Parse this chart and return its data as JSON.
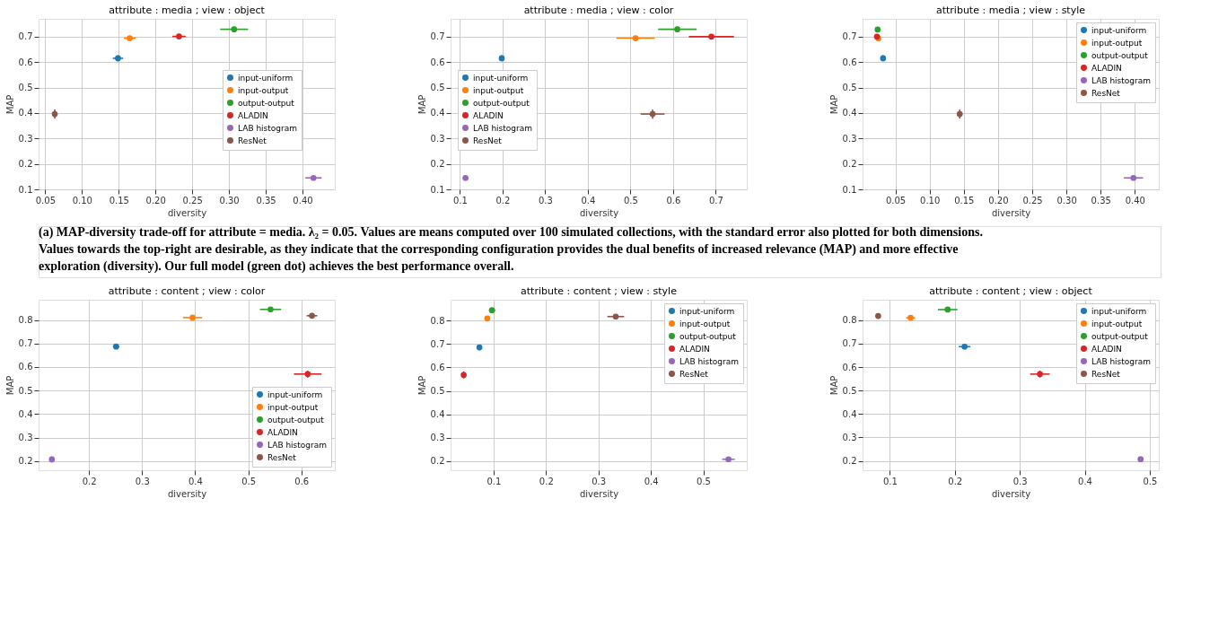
{
  "chart_data": [
    {
      "type": "scatter",
      "title": "attribute : media ; view : object",
      "xlabel": "diversity",
      "ylabel": "MAP",
      "xlim": [
        0.041,
        0.444
      ],
      "ylim": [
        0.1,
        0.77
      ],
      "xticks": [
        {
          "value": 0.05,
          "label": "0.05"
        },
        {
          "value": 0.1,
          "label": "0.10"
        },
        {
          "value": 0.15,
          "label": "0.15"
        },
        {
          "value": 0.2,
          "label": "0.20"
        },
        {
          "value": 0.25,
          "label": "0.25"
        },
        {
          "value": 0.3,
          "label": "0.30"
        },
        {
          "value": 0.35,
          "label": "0.35"
        },
        {
          "value": 0.4,
          "label": "0.40"
        }
      ],
      "yticks": [
        0.1,
        0.2,
        0.3,
        0.4,
        0.5,
        0.6,
        0.7
      ],
      "grid": true,
      "legend": "center right",
      "marker": "circle",
      "series": [
        {
          "name": "input-uniform",
          "color": "#1f77b4",
          "x": [
            0.149
          ],
          "values": [
            0.615
          ],
          "errors": [
            0.012
          ],
          "xerrors": [
            0.007
          ]
        },
        {
          "name": "input-output",
          "color": "#ff7f0e",
          "x": [
            0.165
          ],
          "values": [
            0.694
          ],
          "errors": [
            0.006
          ],
          "xerrors": [
            0.008
          ]
        },
        {
          "name": "output-output",
          "color": "#2ca02c",
          "x": [
            0.307
          ],
          "values": [
            0.729
          ],
          "errors": [
            0.01
          ],
          "xerrors": [
            0.019
          ]
        },
        {
          "name": "ALADIN",
          "color": "#d62728",
          "x": [
            0.232
          ],
          "values": [
            0.701
          ],
          "errors": [
            0.01
          ],
          "xerrors": [
            0.009
          ]
        },
        {
          "name": "LAB histogram",
          "color": "#9467bd",
          "x": [
            0.415
          ],
          "values": [
            0.145
          ],
          "errors": [
            0.006
          ],
          "xerrors": [
            0.011
          ]
        },
        {
          "name": "ResNet",
          "color": "#8c564b",
          "x": [
            0.063
          ],
          "values": [
            0.396
          ],
          "errors": [
            0.018
          ],
          "xerrors": [
            0.003
          ]
        }
      ],
      "annotations": [
        "(a) MAP-diversity trade-off for attribute = media. λ₂ = 0.05. Values are means computed over 100 simulated collections, with the standard error also plotted for both dimensions. Values towards the top-right are desirable, as they indicate that the corresponding configuration provides the dual benefits of increased relevance (MAP) and more effective exploration (diversity). Our full model (green dot) achieves the best performance overall."
      ]
    },
    {
      "type": "scatter",
      "title": "attribute : media ; view : color",
      "xlabel": "diversity",
      "ylabel": "MAP",
      "xlim": [
        0.078,
        0.773
      ],
      "ylim": [
        0.1,
        0.77
      ],
      "xticks": [
        0.1,
        0.2,
        0.3,
        0.4,
        0.5,
        0.6,
        0.7
      ],
      "yticks": [
        0.1,
        0.2,
        0.3,
        0.4,
        0.5,
        0.6,
        0.7
      ],
      "grid": true,
      "legend": "center left",
      "marker": "circle",
      "series": [
        {
          "name": "input-uniform",
          "color": "#1f77b4",
          "x": [
            0.198
          ],
          "values": [
            0.615
          ],
          "errors": [
            0.012
          ],
          "xerrors": [
            0.006
          ]
        },
        {
          "name": "input-output",
          "color": "#ff7f0e",
          "x": [
            0.512
          ],
          "values": [
            0.694
          ],
          "errors": [
            0.006
          ],
          "xerrors": [
            0.045
          ]
        },
        {
          "name": "output-output",
          "color": "#2ca02c",
          "x": [
            0.61
          ],
          "values": [
            0.729
          ],
          "errors": [
            0.01
          ],
          "xerrors": [
            0.045
          ]
        },
        {
          "name": "ALADIN",
          "color": "#d62728",
          "x": [
            0.69
          ],
          "values": [
            0.7
          ],
          "errors": [
            0.01
          ],
          "xerrors": [
            0.053
          ]
        },
        {
          "name": "LAB histogram",
          "color": "#9467bd",
          "x": [
            0.113
          ],
          "values": [
            0.145
          ],
          "errors": [
            0.006
          ],
          "xerrors": [
            0.004
          ]
        },
        {
          "name": "ResNet",
          "color": "#8c564b",
          "x": [
            0.552
          ],
          "values": [
            0.396
          ],
          "errors": [
            0.018
          ],
          "xerrors": [
            0.028
          ]
        }
      ]
    },
    {
      "type": "scatter",
      "title": "attribute : media ; view : style",
      "xlabel": "diversity",
      "ylabel": "MAP",
      "xlim": [
        0.002,
        0.435
      ],
      "ylim": [
        0.1,
        0.77
      ],
      "xticks": [
        {
          "value": 0.05,
          "label": "0.05"
        },
        {
          "value": 0.1,
          "label": "0.10"
        },
        {
          "value": 0.15,
          "label": "0.15"
        },
        {
          "value": 0.2,
          "label": "0.20"
        },
        {
          "value": 0.25,
          "label": "0.25"
        },
        {
          "value": 0.3,
          "label": "0.30"
        },
        {
          "value": 0.35,
          "label": "0.35"
        },
        {
          "value": 0.4,
          "label": "0.40"
        }
      ],
      "yticks": [
        0.1,
        0.2,
        0.3,
        0.4,
        0.5,
        0.6,
        0.7
      ],
      "grid": true,
      "legend": "top right",
      "marker": "circle",
      "series": [
        {
          "name": "input-uniform",
          "color": "#1f77b4",
          "x": [
            0.032
          ],
          "values": [
            0.615
          ],
          "errors": [
            0.012
          ],
          "xerrors": [
            0.002
          ]
        },
        {
          "name": "input-output",
          "color": "#ff7f0e",
          "x": [
            0.025
          ],
          "values": [
            0.693
          ],
          "errors": [
            0.006
          ],
          "xerrors": [
            0.002
          ]
        },
        {
          "name": "output-output",
          "color": "#2ca02c",
          "x": [
            0.024
          ],
          "values": [
            0.728
          ],
          "errors": [
            0.01
          ],
          "xerrors": [
            0.002
          ]
        },
        {
          "name": "ALADIN",
          "color": "#d62728",
          "x": [
            0.023
          ],
          "values": [
            0.7
          ],
          "errors": [
            0.01
          ],
          "xerrors": [
            0.002
          ]
        },
        {
          "name": "LAB histogram",
          "color": "#9467bd",
          "x": [
            0.398
          ],
          "values": [
            0.145
          ],
          "errors": [
            0.006
          ],
          "xerrors": [
            0.014
          ]
        },
        {
          "name": "ResNet",
          "color": "#8c564b",
          "x": [
            0.144
          ],
          "values": [
            0.396
          ],
          "errors": [
            0.018
          ],
          "xerrors": [
            0.004
          ]
        }
      ]
    },
    {
      "type": "scatter",
      "title": "attribute : content ; view : color",
      "xlabel": "diversity",
      "ylabel": "MAP",
      "xlim": [
        0.105,
        0.663
      ],
      "ylim": [
        0.161,
        0.886
      ],
      "xticks": [
        0.2,
        0.3,
        0.4,
        0.5,
        0.6
      ],
      "yticks": [
        0.2,
        0.3,
        0.4,
        0.5,
        0.6,
        0.7,
        0.8
      ],
      "grid": true,
      "legend": "bottom right",
      "marker": "circle",
      "series": [
        {
          "name": "input-uniform",
          "color": "#1f77b4",
          "x": [
            0.251
          ],
          "values": [
            0.687
          ],
          "errors": [
            0.01
          ],
          "xerrors": [
            0.006
          ]
        },
        {
          "name": "input-output",
          "color": "#ff7f0e",
          "x": [
            0.395
          ],
          "values": [
            0.81
          ],
          "errors": [
            0.008
          ],
          "xerrors": [
            0.018
          ]
        },
        {
          "name": "output-output",
          "color": "#2ca02c",
          "x": [
            0.542
          ],
          "values": [
            0.845
          ],
          "errors": [
            0.008
          ],
          "xerrors": [
            0.02
          ]
        },
        {
          "name": "ALADIN",
          "color": "#d62728",
          "x": [
            0.612
          ],
          "values": [
            0.57
          ],
          "errors": [
            0.015
          ],
          "xerrors": [
            0.026
          ]
        },
        {
          "name": "LAB histogram",
          "color": "#9467bd",
          "x": [
            0.13
          ],
          "values": [
            0.207
          ],
          "errors": [
            0.012
          ],
          "xerrors": [
            0.003
          ]
        },
        {
          "name": "ResNet",
          "color": "#8c564b",
          "x": [
            0.62
          ],
          "values": [
            0.818
          ],
          "errors": [
            0.012
          ],
          "xerrors": [
            0.01
          ]
        }
      ]
    },
    {
      "type": "scatter",
      "title": "attribute : content ; view : style",
      "xlabel": "diversity",
      "ylabel": "MAP",
      "xlim": [
        0.018,
        0.583
      ],
      "ylim": [
        0.16,
        0.89
      ],
      "xticks": [
        0.1,
        0.2,
        0.3,
        0.4,
        0.5
      ],
      "yticks": [
        0.2,
        0.3,
        0.4,
        0.5,
        0.6,
        0.7,
        0.8
      ],
      "grid": true,
      "legend": "top right",
      "marker": "circle",
      "series": [
        {
          "name": "input-uniform",
          "color": "#1f77b4",
          "x": [
            0.073
          ],
          "values": [
            0.686
          ],
          "errors": [
            0.012
          ],
          "xerrors": [
            0.003
          ]
        },
        {
          "name": "input-output",
          "color": "#ff7f0e",
          "x": [
            0.088
          ],
          "values": [
            0.81
          ],
          "errors": [
            0.008
          ],
          "xerrors": [
            0.004
          ]
        },
        {
          "name": "output-output",
          "color": "#2ca02c",
          "x": [
            0.097
          ],
          "values": [
            0.845
          ],
          "errors": [
            0.008
          ],
          "xerrors": [
            0.006
          ]
        },
        {
          "name": "ALADIN",
          "color": "#d62728",
          "x": [
            0.043
          ],
          "values": [
            0.568
          ],
          "errors": [
            0.015
          ],
          "xerrors": [
            0.002
          ]
        },
        {
          "name": "LAB histogram",
          "color": "#9467bd",
          "x": [
            0.548
          ],
          "values": [
            0.207
          ],
          "errors": [
            0.008
          ],
          "xerrors": [
            0.012
          ]
        },
        {
          "name": "ResNet",
          "color": "#8c564b",
          "x": [
            0.333
          ],
          "values": [
            0.818
          ],
          "errors": [
            0.01
          ],
          "xerrors": [
            0.016
          ]
        }
      ]
    },
    {
      "type": "scatter",
      "title": "attribute : content ; view : object",
      "xlabel": "diversity",
      "ylabel": "MAP",
      "xlim": [
        0.058,
        0.514
      ],
      "ylim": [
        0.16,
        0.887
      ],
      "xticks": [
        0.1,
        0.2,
        0.3,
        0.4,
        0.5
      ],
      "yticks": [
        0.2,
        0.3,
        0.4,
        0.5,
        0.6,
        0.7,
        0.8
      ],
      "grid": true,
      "legend": "top right",
      "marker": "circle",
      "series": [
        {
          "name": "input-uniform",
          "color": "#1f77b4",
          "x": [
            0.215
          ],
          "values": [
            0.687
          ],
          "errors": [
            0.01
          ],
          "xerrors": [
            0.009
          ]
        },
        {
          "name": "input-output",
          "color": "#ff7f0e",
          "x": [
            0.132
          ],
          "values": [
            0.81
          ],
          "errors": [
            0.008
          ],
          "xerrors": [
            0.007
          ]
        },
        {
          "name": "output-output",
          "color": "#2ca02c",
          "x": [
            0.189
          ],
          "values": [
            0.845
          ],
          "errors": [
            0.008
          ],
          "xerrors": [
            0.015
          ]
        },
        {
          "name": "ALADIN",
          "color": "#d62728",
          "x": [
            0.331
          ],
          "values": [
            0.57
          ],
          "errors": [
            0.015
          ],
          "xerrors": [
            0.015
          ]
        },
        {
          "name": "LAB histogram",
          "color": "#9467bd",
          "x": [
            0.486
          ],
          "values": [
            0.207
          ],
          "errors": [
            0.01
          ],
          "xerrors": [
            0.004
          ]
        },
        {
          "name": "ResNet",
          "color": "#8c564b",
          "x": [
            0.082
          ],
          "values": [
            0.818
          ],
          "errors": [
            0.012
          ],
          "xerrors": [
            0.003
          ]
        }
      ]
    }
  ]
}
